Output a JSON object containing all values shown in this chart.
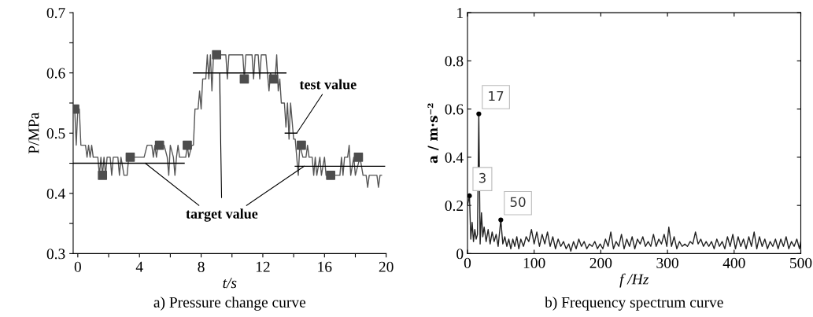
{
  "chart_data": [
    {
      "type": "line",
      "title": "a) Pressure change curve",
      "xlabel": "t/s",
      "ylabel": "P/MPa",
      "xlim": [
        -0.3,
        20
      ],
      "xticks": [
        0,
        {
          "value": 2,
          "label": null
        },
        4,
        {
          "value": 6,
          "label": null
        },
        8,
        {
          "value": 10,
          "label": null
        },
        12,
        {
          "value": 14,
          "label": null
        },
        16,
        {
          "value": 18,
          "label": null
        },
        20
      ],
      "ylim": [
        0.3,
        0.7
      ],
      "yticks": [
        0.3,
        {
          "value": 0.35,
          "label": null
        },
        0.4,
        {
          "value": 0.45,
          "label": null
        },
        0.5,
        {
          "value": 0.55,
          "label": null
        },
        0.6,
        {
          "value": 0.65,
          "label": null
        },
        0.7
      ],
      "grid": false,
      "legend": false,
      "line_style": "solid",
      "series": [
        {
          "color": "#555555",
          "marker": "none",
          "x": [
            -0.3,
            -0.2,
            -0.1,
            0,
            0.1,
            0.2,
            0.5,
            0.6,
            0.7,
            0.8,
            0.9,
            1.0,
            1.3,
            1.4,
            1.5,
            1.6,
            1.7,
            1.8,
            1.9,
            2.1,
            2.2,
            2.3,
            2.6,
            2.7,
            2.8,
            3.0,
            3.2,
            3.3,
            4.3,
            4.5,
            4.8,
            4.9,
            5.0,
            5.1,
            5.2,
            5.6,
            5.8,
            5.9,
            6.0,
            6.2,
            6.3,
            6.4,
            6.5,
            6.6,
            7.0,
            7.1,
            7.2,
            7.4,
            7.5,
            7.6,
            7.8,
            7.9,
            8.0,
            8.1,
            8.3,
            8.4,
            8.5,
            8.6,
            8.7,
            8.8,
            9.6,
            9.7,
            9.8,
            10.7,
            10.8,
            10.9,
            11.3,
            11.4,
            11.5,
            11.7,
            11.8,
            11.9,
            12.2,
            12.3,
            12.4,
            12.5,
            12.6,
            12.8,
            12.9,
            13.0,
            13.1,
            13.2,
            13.4,
            13.5,
            13.6,
            13.7,
            13.8,
            14.0,
            14.1,
            14.2,
            14.3,
            14.4,
            14.6,
            14.8,
            14.9,
            15.0,
            15.2,
            15.3,
            15.4,
            15.5,
            15.7,
            15.8,
            16.0,
            16.1,
            16.3,
            17.0,
            17.1,
            17.2,
            17.3,
            17.5,
            17.6,
            17.7,
            17.9,
            18.0,
            18.3,
            18.5,
            18.7,
            18.8,
            18.9,
            19.4,
            19.5,
            19.6,
            19.7
          ],
          "values": [
            0.54,
            0.54,
            0.48,
            0.54,
            0.54,
            0.48,
            0.48,
            0.46,
            0.48,
            0.46,
            0.48,
            0.46,
            0.46,
            0.43,
            0.46,
            0.43,
            0.46,
            0.43,
            0.46,
            0.46,
            0.43,
            0.46,
            0.46,
            0.43,
            0.46,
            0.43,
            0.43,
            0.46,
            0.46,
            0.48,
            0.48,
            0.46,
            0.48,
            0.46,
            0.48,
            0.48,
            0.46,
            0.43,
            0.48,
            0.46,
            0.43,
            0.46,
            0.48,
            0.46,
            0.46,
            0.48,
            0.46,
            0.48,
            0.48,
            0.54,
            0.54,
            0.57,
            0.54,
            0.59,
            0.59,
            0.63,
            0.59,
            0.63,
            0.57,
            0.63,
            0.63,
            0.59,
            0.63,
            0.63,
            0.59,
            0.63,
            0.63,
            0.59,
            0.63,
            0.63,
            0.59,
            0.63,
            0.63,
            0.6,
            0.57,
            0.6,
            0.59,
            0.59,
            0.63,
            0.57,
            0.59,
            0.55,
            0.55,
            0.51,
            0.55,
            0.49,
            0.55,
            0.49,
            0.49,
            0.46,
            0.43,
            0.48,
            0.46,
            0.46,
            0.48,
            0.46,
            0.46,
            0.43,
            0.46,
            0.43,
            0.46,
            0.43,
            0.46,
            0.43,
            0.43,
            0.43,
            0.46,
            0.43,
            0.46,
            0.46,
            0.48,
            0.43,
            0.46,
            0.43,
            0.46,
            0.43,
            0.43,
            0.41,
            0.43,
            0.43,
            0.41,
            0.43,
            0.43
          ]
        },
        {
          "type": "scatter",
          "color": "#4d4d4d",
          "marker": "square",
          "x": [
            -0.2,
            1.6,
            3.4,
            5.3,
            7.1,
            9.0,
            10.8,
            12.7,
            14.5,
            16.4,
            18.2
          ],
          "values": [
            0.54,
            0.43,
            0.46,
            0.48,
            0.48,
            0.63,
            0.59,
            0.59,
            0.48,
            0.43,
            0.46
          ]
        },
        {
          "color": "#000000",
          "marker": "none",
          "x": [
            -0.3,
            6.9
          ],
          "values": [
            0.45,
            0.45
          ]
        },
        {
          "color": "#000000",
          "marker": "none",
          "x": [
            7.5,
            13.5
          ],
          "values": [
            0.6,
            0.6
          ]
        },
        {
          "color": "#000000",
          "marker": "none",
          "x": [
            14.1,
            19.9
          ],
          "values": [
            0.445,
            0.445
          ]
        },
        {
          "color": "#000000",
          "marker": "none",
          "x": [
            13.45,
            14.2
          ],
          "values": [
            0.5,
            0.5
          ]
        }
      ],
      "annotations": [
        {
          "text": "test value",
          "x": 14.2,
          "y": 0.5
        },
        {
          "text": "target value",
          "x": 9.2,
          "y": 0.6
        }
      ]
    },
    {
      "type": "line",
      "title": "b) Frequency spectrum curve",
      "xlabel": "f /Hz",
      "ylabel": "a / m·s⁻²",
      "xlim": [
        0,
        500
      ],
      "xticks": [
        0,
        100,
        200,
        300,
        400,
        500
      ],
      "ylim": [
        0,
        1
      ],
      "yticks": [
        0,
        0.2,
        0.4,
        0.6,
        0.8,
        1
      ],
      "grid": false,
      "legend": false,
      "line_style": "solid",
      "series": [
        {
          "color": "#222222",
          "marker": "none",
          "x": [
            0,
            3,
            5,
            7,
            9,
            11,
            13,
            15,
            17,
            19,
            21,
            23,
            25,
            28,
            31,
            34,
            37,
            40,
            43,
            46,
            50,
            53,
            56,
            59,
            62,
            65,
            68,
            71,
            74,
            77,
            80,
            84,
            88,
            92,
            96,
            100,
            104,
            108,
            112,
            116,
            120,
            124,
            128,
            132,
            136,
            140,
            144,
            148,
            152,
            155,
            159,
            163,
            167,
            171,
            175,
            179,
            183,
            187,
            191,
            195,
            199,
            203,
            207,
            211,
            215,
            219,
            223,
            227,
            231,
            235,
            239,
            243,
            247,
            251,
            255,
            259,
            263,
            267,
            271,
            275,
            279,
            283,
            287,
            291,
            295,
            299,
            302,
            306,
            310,
            314,
            318,
            322,
            326,
            330,
            334,
            338,
            342,
            346,
            350,
            354,
            358,
            362,
            366,
            370,
            374,
            378,
            382,
            386,
            390,
            394,
            398,
            402,
            406,
            410,
            414,
            418,
            422,
            426,
            430,
            434,
            438,
            442,
            446,
            450,
            454,
            458,
            462,
            466,
            470,
            474,
            478,
            482,
            486,
            490,
            494,
            498,
            500
          ],
          "values": [
            0.2,
            0.24,
            0.06,
            0.13,
            0.05,
            0.1,
            0.06,
            0.08,
            0.58,
            0.04,
            0.17,
            0.07,
            0.11,
            0.05,
            0.1,
            0.04,
            0.09,
            0.05,
            0.08,
            0.03,
            0.14,
            0.04,
            0.07,
            0.03,
            0.06,
            0.02,
            0.06,
            0.03,
            0.07,
            0.02,
            0.06,
            0.03,
            0.07,
            0.05,
            0.1,
            0.04,
            0.09,
            0.03,
            0.08,
            0.04,
            0.09,
            0.03,
            0.07,
            0.02,
            0.06,
            0.03,
            0.05,
            0.02,
            0.04,
            0.01,
            0.05,
            0.02,
            0.06,
            0.03,
            0.05,
            0.02,
            0.04,
            0.03,
            0.05,
            0.02,
            0.04,
            0.02,
            0.06,
            0.03,
            0.09,
            0.02,
            0.05,
            0.03,
            0.08,
            0.02,
            0.06,
            0.03,
            0.07,
            0.02,
            0.06,
            0.04,
            0.07,
            0.03,
            0.05,
            0.03,
            0.08,
            0.03,
            0.06,
            0.04,
            0.08,
            0.03,
            0.11,
            0.03,
            0.07,
            0.02,
            0.05,
            0.03,
            0.04,
            0.03,
            0.05,
            0.04,
            0.09,
            0.04,
            0.06,
            0.03,
            0.05,
            0.03,
            0.05,
            0.02,
            0.06,
            0.03,
            0.05,
            0.02,
            0.07,
            0.03,
            0.08,
            0.02,
            0.07,
            0.03,
            0.06,
            0.02,
            0.07,
            0.03,
            0.09,
            0.02,
            0.07,
            0.03,
            0.06,
            0.02,
            0.05,
            0.03,
            0.06,
            0.02,
            0.06,
            0.03,
            0.07,
            0.02,
            0.05,
            0.03,
            0.06,
            0.02,
            0.05
          ]
        }
      ],
      "annotations": [
        {
          "text": "3",
          "x": 3,
          "y": 0.24
        },
        {
          "text": "17",
          "x": 17,
          "y": 0.58
        },
        {
          "text": "50",
          "x": 50,
          "y": 0.14
        }
      ]
    }
  ]
}
